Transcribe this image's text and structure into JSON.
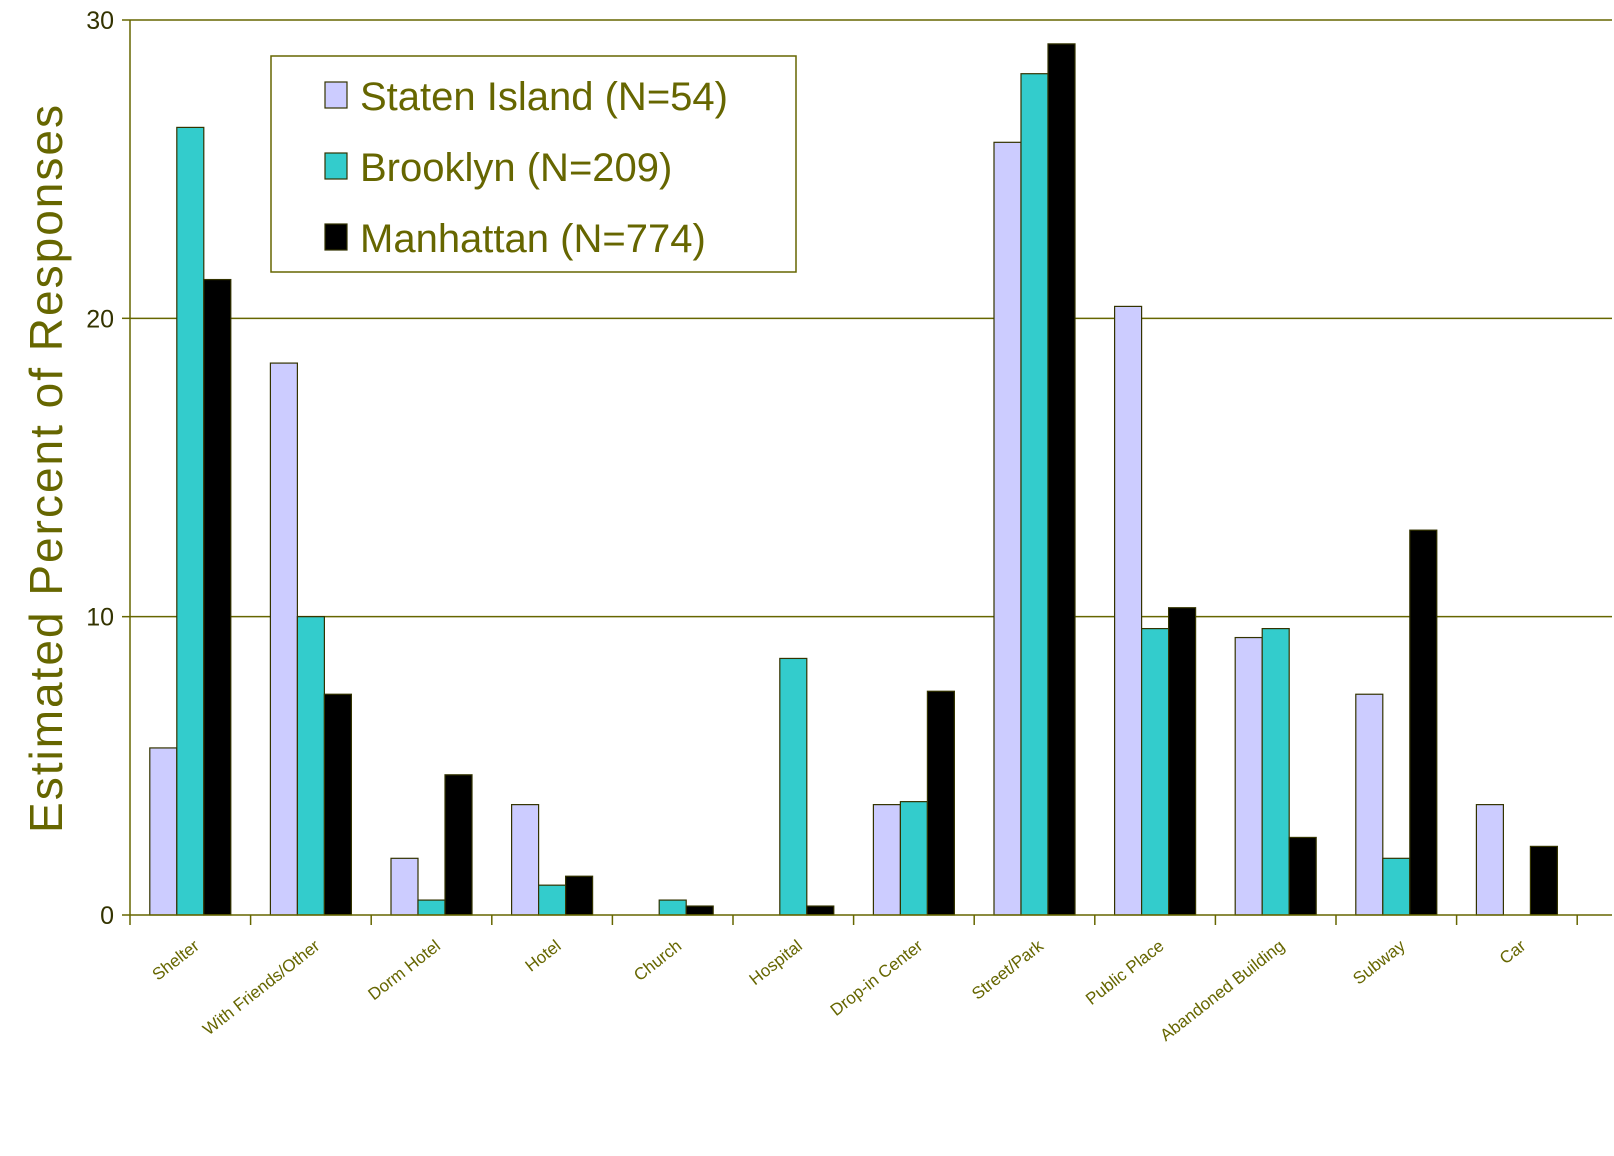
{
  "chart_data": {
    "type": "bar",
    "ylabel": "Estimated Percent of Responses",
    "xlabel": "",
    "ylim": [
      0,
      30
    ],
    "yticks": [
      "0",
      "10",
      "20",
      "30"
    ],
    "grid": true,
    "legend_position": "top-left",
    "categories": [
      "Shelter",
      "With Friends/Other",
      "Dorm Hotel",
      "Hotel",
      "Church",
      "Hospital",
      "Drop-in Center",
      "Street/Park",
      "Public Place",
      "Abandoned Building",
      "Subway",
      "Car"
    ],
    "series": [
      {
        "name": "Staten Island (N=54)",
        "color": "#ccccff",
        "values": [
          5.6,
          18.5,
          1.9,
          3.7,
          0,
          0,
          3.7,
          25.9,
          20.4,
          9.3,
          7.4,
          3.7
        ]
      },
      {
        "name": "Brooklyn (N=209)",
        "color": "#33cccc",
        "values": [
          26.4,
          10.0,
          0.5,
          1.0,
          0.5,
          8.6,
          3.8,
          28.2,
          9.6,
          9.6,
          1.9,
          0
        ]
      },
      {
        "name": "Manhattan (N=774)",
        "color": "#000000",
        "values": [
          21.3,
          7.4,
          4.7,
          1.3,
          0.3,
          0.3,
          7.5,
          29.2,
          10.3,
          2.6,
          12.9,
          2.3
        ]
      }
    ],
    "colors": {
      "axis": "#666600",
      "grid": "#666600",
      "text": "#666600",
      "bar_outline": "#333300"
    }
  }
}
